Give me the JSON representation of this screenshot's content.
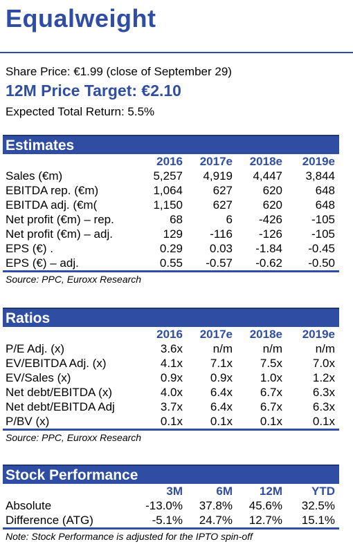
{
  "header": {
    "rating": "Equalweight",
    "share_price": "Share Price: €1.99 (close of September 29)",
    "price_target": "12M Price Target: €2.10",
    "expected_return": "Expected Total Return: 5.5%"
  },
  "estimates": {
    "title": "Estimates",
    "columns": [
      "2016",
      "2017e",
      "2018e",
      "2019e"
    ],
    "rows": [
      {
        "label": "Sales (€m)",
        "values": [
          "5,257",
          "4,919",
          "4,447",
          "3,844"
        ]
      },
      {
        "label": "EBITDA rep. (€m)",
        "values": [
          "1,064",
          "627",
          "620",
          "648"
        ]
      },
      {
        "label": "EBITDA adj. (€m(",
        "values": [
          "1,150",
          "627",
          "620",
          "648"
        ]
      },
      {
        "label": "Net profit (€m) – rep.",
        "values": [
          "68",
          "6",
          "-426",
          "-105"
        ]
      },
      {
        "label": "Net profit (€m) – adj.",
        "values": [
          "129",
          "-116",
          "-126",
          "-105"
        ]
      },
      {
        "label": "EPS (€) .",
        "values": [
          "0.29",
          "0.03",
          "-1.84",
          "-0.45"
        ]
      },
      {
        "label": "EPS (€) – adj.",
        "values": [
          "0.55",
          "-0.57",
          "-0.62",
          "-0.50"
        ]
      }
    ],
    "source": "Source: PPC, Euroxx Research"
  },
  "ratios": {
    "title": "Ratios",
    "columns": [
      "2016",
      "2017e",
      "2018e",
      "2019e"
    ],
    "rows": [
      {
        "label": "P/E Adj. (x)",
        "values": [
          "3.6x",
          "n/m",
          "n/m",
          "n/m"
        ]
      },
      {
        "label": "EV/EBITDA Adj. (x)",
        "values": [
          "4.1x",
          "7.1x",
          "7.5x",
          "7.0x"
        ]
      },
      {
        "label": "EV/Sales (x)",
        "values": [
          "0.9x",
          "0.9x",
          "1.0x",
          "1.2x"
        ]
      },
      {
        "label": "Net debt/EBITDA (x)",
        "values": [
          "4.0x",
          "6.4x",
          "6.7x",
          "6.3x"
        ]
      },
      {
        "label": "Net debt/EBITDA Adj",
        "values": [
          "3.7x",
          "6.4x",
          "6.7x",
          "6.3x"
        ]
      },
      {
        "label": "P/BV (x)",
        "values": [
          "0.1x",
          "0.1x",
          "0.1x",
          "0.1x"
        ]
      }
    ],
    "source": "Source: PPC, Euroxx Research"
  },
  "performance": {
    "title": "Stock Performance",
    "columns": [
      "3M",
      "6M",
      "12M",
      "YTD"
    ],
    "rows": [
      {
        "label": "Absolute",
        "values": [
          "-13.0%",
          "37.8%",
          "45.6%",
          "32.5%"
        ]
      },
      {
        "label": "Difference (ATG)",
        "values": [
          "-5.1%",
          "24.7%",
          "12.7%",
          "15.1%"
        ]
      }
    ],
    "note": "Note: Stock Performance is adjusted for the IPTO spin-off"
  },
  "colors": {
    "accent": "#2f4ea3",
    "header_text": "#ffffff"
  }
}
